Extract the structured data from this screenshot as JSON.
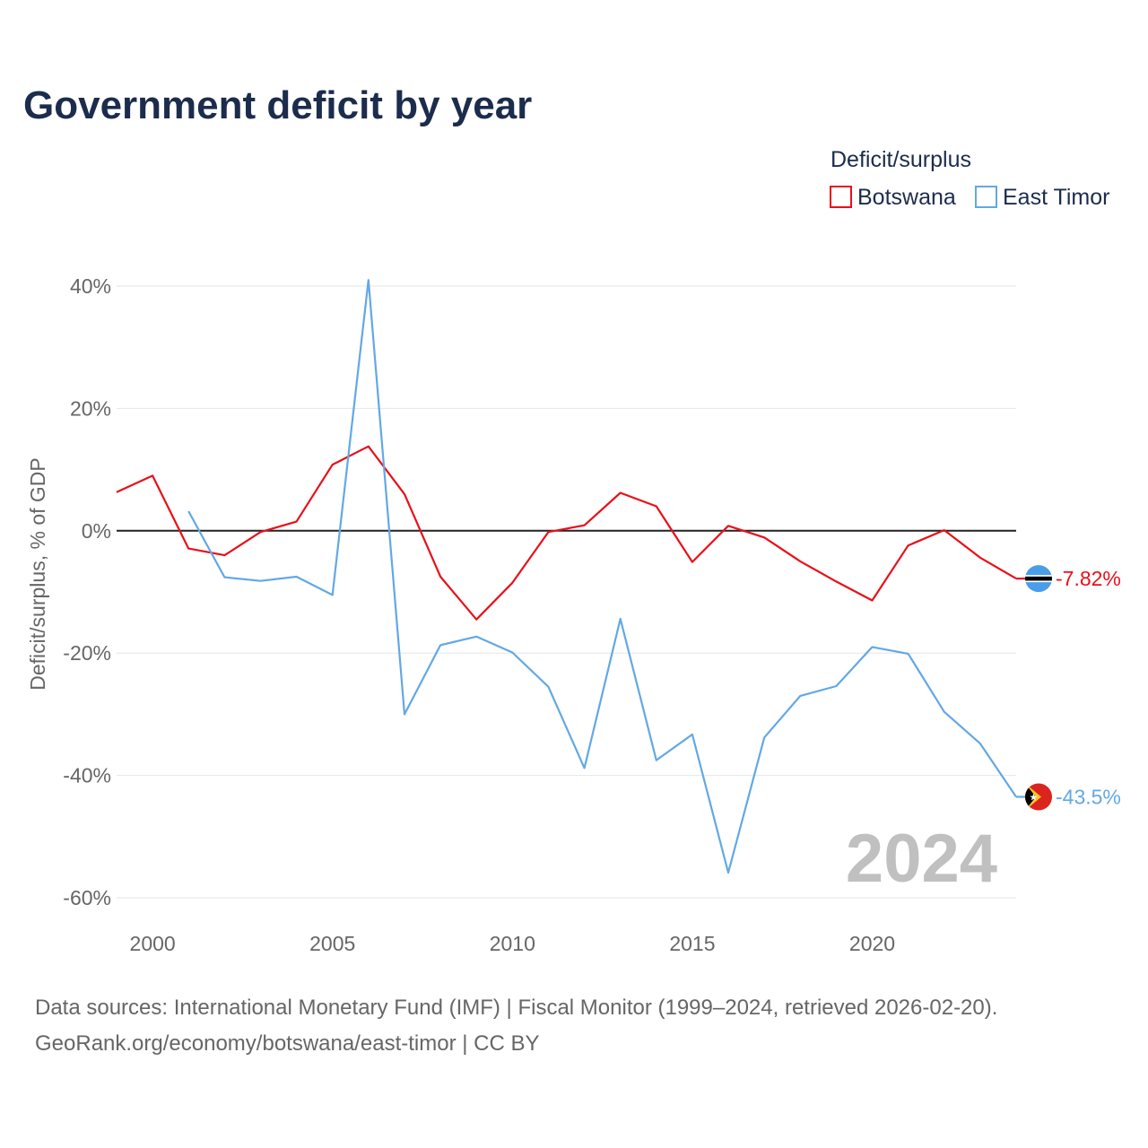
{
  "chart_data": {
    "type": "line",
    "title": "Government deficit by year",
    "ylabel": "Deficit/surplus, % of GDP",
    "xlabel": "",
    "xlim": [
      1999,
      2024
    ],
    "ylim": [
      -60,
      40
    ],
    "x_ticks": [
      2000,
      2005,
      2010,
      2015,
      2020
    ],
    "y_ticks": [
      40,
      20,
      0,
      -20,
      -40,
      -60
    ],
    "y_tick_labels": [
      "40%",
      "20%",
      "0%",
      "-20%",
      "-40%",
      "-60%"
    ],
    "legend_title": "Deficit/surplus",
    "legend_position": "top-right",
    "year_watermark": "2024",
    "series": [
      {
        "name": "Botswana",
        "color": "#e8101a",
        "end_label": "-7.82%",
        "flag_icon": "botswana-flag-icon",
        "x": [
          1999,
          2000,
          2001,
          2002,
          2003,
          2004,
          2005,
          2006,
          2007,
          2008,
          2009,
          2010,
          2011,
          2012,
          2013,
          2014,
          2015,
          2016,
          2017,
          2018,
          2019,
          2020,
          2021,
          2022,
          2023,
          2024
        ],
        "values": [
          6.3,
          9.0,
          -2.9,
          -4.0,
          -0.2,
          1.5,
          10.8,
          13.8,
          6.0,
          -7.5,
          -14.5,
          -8.5,
          -0.2,
          0.9,
          6.2,
          4.0,
          -5.1,
          0.8,
          -1.1,
          -5.0,
          -8.3,
          -11.4,
          -2.4,
          0.1,
          -4.4,
          -7.82
        ]
      },
      {
        "name": "East Timor",
        "color": "#62a8e5",
        "end_label": "-43.5%",
        "flag_icon": "east-timor-flag-icon",
        "x": [
          2001,
          2002,
          2003,
          2004,
          2005,
          2006,
          2007,
          2008,
          2009,
          2010,
          2011,
          2012,
          2013,
          2014,
          2015,
          2016,
          2017,
          2018,
          2019,
          2020,
          2021,
          2022,
          2023,
          2024
        ],
        "values": [
          3.2,
          -7.6,
          -8.2,
          -7.5,
          -10.5,
          41.0,
          -30.0,
          -18.7,
          -17.3,
          -19.9,
          -25.5,
          -38.8,
          -14.4,
          -37.5,
          -33.3,
          -55.9,
          -33.8,
          -27.0,
          -25.4,
          -19.0,
          -20.1,
          -29.6,
          -34.8,
          -43.5
        ]
      }
    ]
  },
  "source": {
    "line1": "Data sources: International Monetary Fund (IMF) | Fiscal Monitor (1999–2024, retrieved 2026-02-20).",
    "line2": "GeoRank.org/economy/botswana/east-timor | CC BY"
  }
}
